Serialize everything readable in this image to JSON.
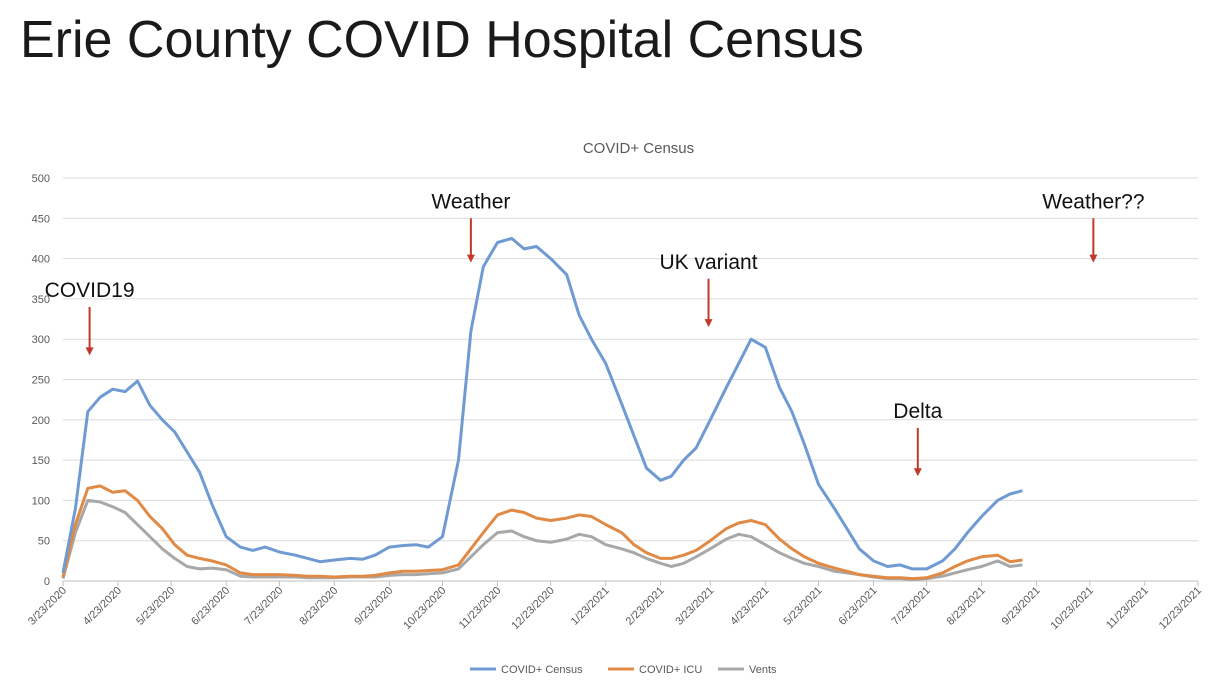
{
  "slide": {
    "title": "Erie County COVID Hospital Census"
  },
  "colors": {
    "census": "#6f9bd2",
    "icu": "#e08a45",
    "vents": "#a8a8a8",
    "arrow": "#c0392b",
    "grid": "#dcdcdc"
  },
  "chart_data": {
    "type": "line",
    "title": "COVID+ Census",
    "xlabel": "",
    "ylabel": "",
    "ylim": [
      0,
      500
    ],
    "yticks": [
      0,
      50,
      100,
      150,
      200,
      250,
      300,
      350,
      400,
      450,
      500
    ],
    "grid": true,
    "legend_position": "bottom",
    "xtick_labels": [
      "3/23/2020",
      "4/23/2020",
      "5/23/2020",
      "6/23/2020",
      "7/23/2020",
      "8/23/2020",
      "9/23/2020",
      "10/23/2020",
      "11/23/2020",
      "12/23/2020",
      "1/23/2021",
      "2/23/2021",
      "3/23/2021",
      "4/23/2021",
      "5/23/2021",
      "6/23/2021",
      "7/23/2021",
      "8/23/2021",
      "9/23/2021",
      "10/23/2021",
      "11/23/2021",
      "12/23/2021"
    ],
    "x": [
      "3/23/2020",
      "3/30/2020",
      "4/6/2020",
      "4/13/2020",
      "4/20/2020",
      "4/27/2020",
      "5/4/2020",
      "5/11/2020",
      "5/18/2020",
      "5/25/2020",
      "6/1/2020",
      "6/8/2020",
      "6/15/2020",
      "6/23/2020",
      "7/1/2020",
      "7/8/2020",
      "7/15/2020",
      "7/23/2020",
      "8/1/2020",
      "8/8/2020",
      "8/15/2020",
      "8/23/2020",
      "9/1/2020",
      "9/8/2020",
      "9/15/2020",
      "9/23/2020",
      "10/1/2020",
      "10/8/2020",
      "10/15/2020",
      "10/23/2020",
      "11/1/2020",
      "11/8/2020",
      "11/15/2020",
      "11/23/2020",
      "12/1/2020",
      "12/8/2020",
      "12/15/2020",
      "12/23/2020",
      "1/1/2021",
      "1/8/2021",
      "1/15/2021",
      "1/23/2021",
      "2/1/2021",
      "2/8/2021",
      "2/15/2021",
      "2/23/2021",
      "3/1/2021",
      "3/8/2021",
      "3/15/2021",
      "3/23/2021",
      "4/1/2021",
      "4/8/2021",
      "4/15/2021",
      "4/23/2021",
      "5/1/2021",
      "5/8/2021",
      "5/15/2021",
      "5/23/2021",
      "6/1/2021",
      "6/8/2021",
      "6/15/2021",
      "6/23/2021",
      "7/1/2021",
      "7/8/2021",
      "7/15/2021",
      "7/23/2021",
      "8/1/2021",
      "8/8/2021",
      "8/15/2021",
      "8/23/2021",
      "9/1/2021",
      "9/8/2021",
      "9/15/2021"
    ],
    "series": [
      {
        "name": "COVID+ Census",
        "values": [
          10,
          90,
          210,
          228,
          238,
          235,
          248,
          218,
          200,
          185,
          160,
          135,
          95,
          55,
          42,
          38,
          42,
          36,
          32,
          28,
          24,
          26,
          28,
          27,
          32,
          42,
          44,
          45,
          42,
          55,
          150,
          310,
          390,
          420,
          425,
          412,
          415,
          400,
          380,
          330,
          300,
          270,
          220,
          180,
          140,
          125,
          130,
          150,
          165,
          200,
          240,
          270,
          300,
          290,
          240,
          210,
          170,
          120,
          90,
          65,
          40,
          25,
          18,
          20,
          15,
          15,
          25,
          40,
          60,
          80,
          100,
          108,
          112
        ]
      },
      {
        "name": "COVID+ ICU",
        "values": [
          5,
          70,
          115,
          118,
          110,
          112,
          100,
          80,
          65,
          45,
          32,
          28,
          25,
          20,
          10,
          8,
          8,
          8,
          7,
          6,
          6,
          5,
          6,
          6,
          7,
          10,
          12,
          12,
          13,
          14,
          20,
          40,
          60,
          82,
          88,
          85,
          78,
          75,
          78,
          82,
          80,
          70,
          60,
          45,
          35,
          28,
          28,
          32,
          38,
          50,
          65,
          72,
          75,
          70,
          52,
          40,
          30,
          22,
          16,
          12,
          8,
          6,
          4,
          4,
          3,
          4,
          10,
          18,
          25,
          30,
          32,
          24,
          26
        ]
      },
      {
        "name": "Vents",
        "values": [
          3,
          60,
          100,
          98,
          92,
          85,
          70,
          55,
          40,
          28,
          18,
          15,
          16,
          14,
          6,
          5,
          5,
          5,
          5,
          4,
          4,
          4,
          5,
          5,
          5,
          7,
          8,
          8,
          9,
          10,
          15,
          30,
          45,
          60,
          62,
          55,
          50,
          48,
          52,
          58,
          55,
          45,
          40,
          35,
          28,
          22,
          18,
          22,
          30,
          40,
          52,
          58,
          55,
          45,
          35,
          28,
          22,
          18,
          12,
          10,
          8,
          5,
          3,
          3,
          2,
          3,
          6,
          10,
          14,
          18,
          25,
          18,
          20
        ]
      }
    ],
    "annotations": [
      {
        "text": "COVID19",
        "at_date": "4/7/2020",
        "arrow_to": 280,
        "arrow_from": 340
      },
      {
        "text": "Weather",
        "at_date": "11/8/2020",
        "arrow_to": 395,
        "arrow_from": 450
      },
      {
        "text": "UK variant",
        "at_date": "3/22/2021",
        "arrow_to": 315,
        "arrow_from": 375
      },
      {
        "text": "Delta",
        "at_date": "7/18/2021",
        "arrow_to": 130,
        "arrow_from": 190
      },
      {
        "text": "Weather??",
        "at_date": "10/25/2021",
        "arrow_to": 395,
        "arrow_from": 450
      }
    ]
  }
}
